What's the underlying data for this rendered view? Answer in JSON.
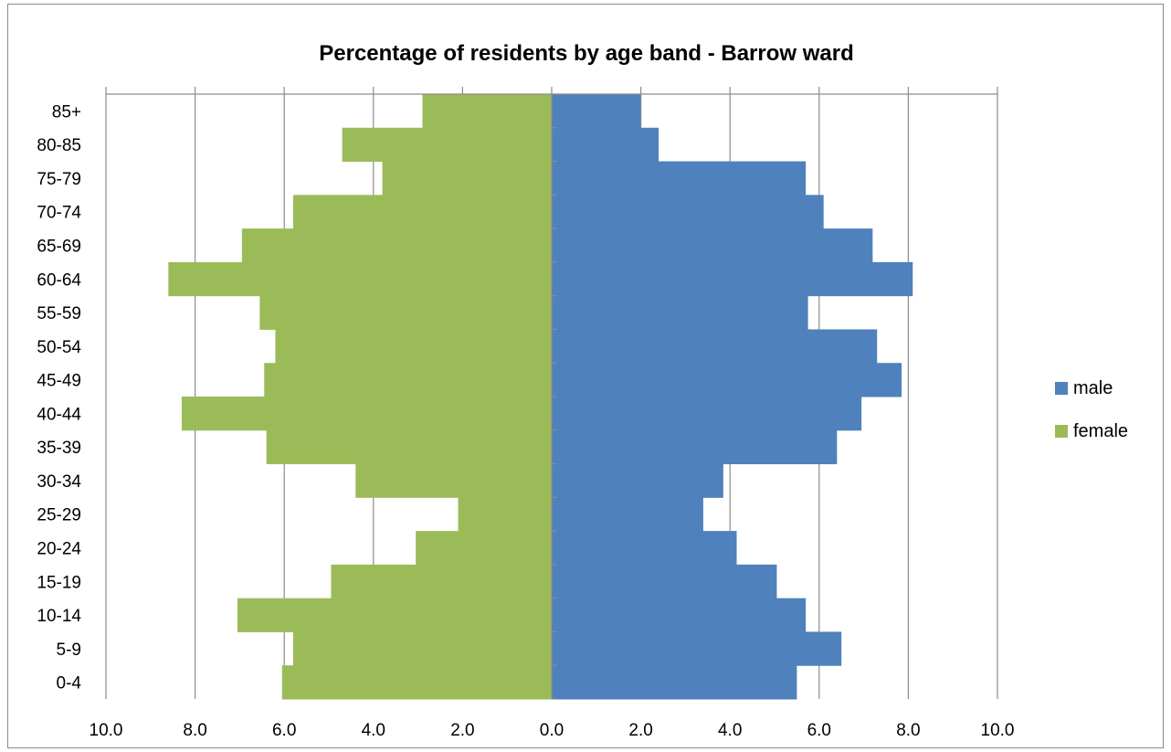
{
  "chart_data": {
    "type": "bar",
    "orientation": "horizontal",
    "layout": "population-pyramid",
    "title": "Percentage of residents by age band - Barrow ward",
    "categories": [
      "0-4",
      "5-9",
      "10-14",
      "15-19",
      "20-24",
      "25-29",
      "30-34",
      "35-39",
      "40-44",
      "45-49",
      "50-54",
      "55-59",
      "60-64",
      "65-69",
      "70-74",
      "75-79",
      "80-85",
      "85+"
    ],
    "series": [
      {
        "name": "male",
        "side": "right",
        "color": "#4f81bd",
        "values": [
          5.5,
          6.5,
          5.7,
          5.05,
          4.15,
          3.4,
          3.85,
          6.4,
          6.95,
          7.85,
          7.3,
          5.75,
          8.1,
          7.2,
          6.1,
          5.7,
          2.4,
          2.0
        ]
      },
      {
        "name": "female",
        "side": "left",
        "color": "#9bbb59",
        "values": [
          6.05,
          5.8,
          7.05,
          4.95,
          3.05,
          2.1,
          4.4,
          6.4,
          8.3,
          6.45,
          6.2,
          6.55,
          8.6,
          6.95,
          5.8,
          3.8,
          4.7,
          2.9
        ]
      }
    ],
    "xlim": [
      -10,
      10
    ],
    "x_ticks": [
      "10.0",
      "8.0",
      "6.0",
      "4.0",
      "2.0",
      "0.0",
      "2.0",
      "4.0",
      "6.0",
      "8.0",
      "10.0"
    ],
    "grid": true,
    "legend_position": "right"
  }
}
